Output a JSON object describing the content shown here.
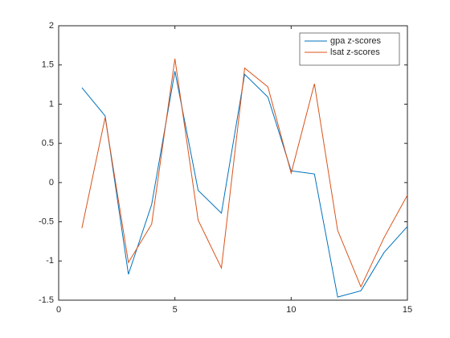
{
  "chart_data": {
    "type": "line",
    "x": [
      1,
      2,
      3,
      4,
      5,
      6,
      7,
      8,
      9,
      10,
      11,
      12,
      13,
      14,
      15
    ],
    "series": [
      {
        "name": "gpa z-scores",
        "color": "#0072bd",
        "values": [
          1.21,
          0.85,
          -1.17,
          -0.28,
          1.42,
          -0.1,
          -0.39,
          1.38,
          1.09,
          0.15,
          0.11,
          -1.46,
          -1.38,
          -0.89,
          -0.56
        ]
      },
      {
        "name": "lsat z-scores",
        "color": "#d95319",
        "values": [
          -0.58,
          0.83,
          -1.02,
          -0.53,
          1.58,
          -0.48,
          -1.09,
          1.46,
          1.22,
          0.12,
          1.26,
          -0.61,
          -1.33,
          -0.7,
          -0.16
        ]
      }
    ],
    "xlim": [
      0,
      15
    ],
    "xticks": [
      0,
      5,
      10,
      15
    ],
    "ylim": [
      -1.5,
      2
    ],
    "yticks": [
      -1.5,
      -1,
      -0.5,
      0,
      0.5,
      1,
      1.5,
      2
    ],
    "legend": "northeast"
  }
}
